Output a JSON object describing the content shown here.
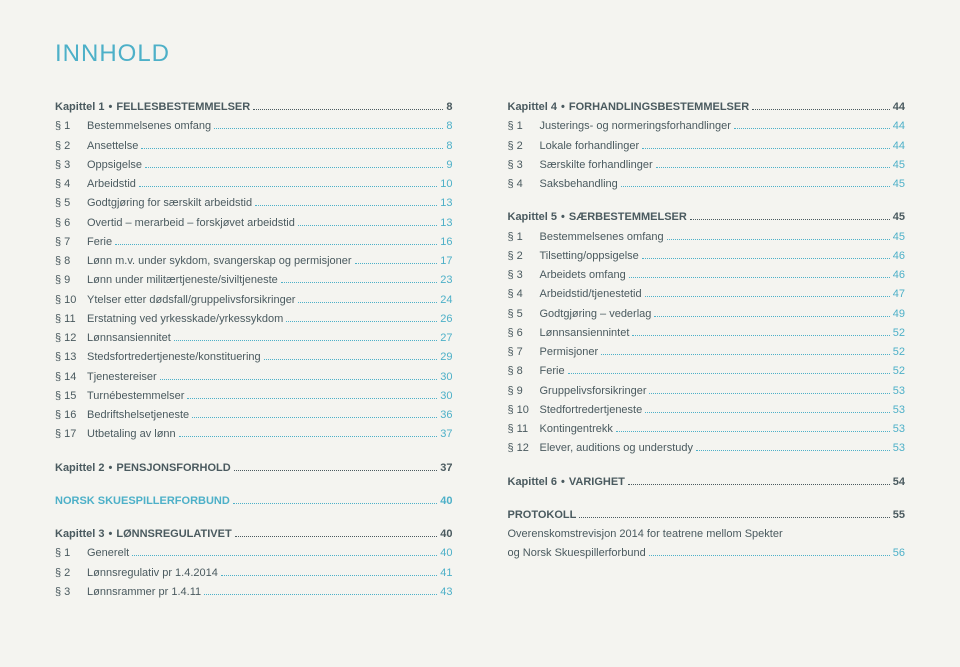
{
  "title": "INNHOLD",
  "left": {
    "ch1": {
      "label": "Kapittel 1",
      "name": "FELLESBESTEMMELSER",
      "page": "8"
    },
    "e1": {
      "s": "§ 1",
      "label": "Bestemmelsenes omfang",
      "page": "8"
    },
    "e2": {
      "s": "§ 2",
      "label": "Ansettelse",
      "page": "8"
    },
    "e3": {
      "s": "§ 3",
      "label": "Oppsigelse",
      "page": "9"
    },
    "e4": {
      "s": "§ 4",
      "label": "Arbeidstid",
      "page": "10"
    },
    "e5": {
      "s": "§ 5",
      "label": "Godtgjøring for særskilt arbeidstid",
      "page": "13"
    },
    "e6": {
      "s": "§ 6",
      "label": "Overtid – merarbeid – forskjøvet arbeidstid",
      "page": "13"
    },
    "e7": {
      "s": "§ 7",
      "label": "Ferie",
      "page": "16"
    },
    "e8": {
      "s": "§ 8",
      "label": "Lønn m.v. under sykdom, svangerskap og permisjoner",
      "page": "17"
    },
    "e9": {
      "s": "§ 9",
      "label": "Lønn under militærtjeneste/siviltjeneste",
      "page": "23"
    },
    "e10": {
      "s": "§ 10",
      "label": "Ytelser etter dødsfall/gruppelivsforsikringer",
      "page": "24"
    },
    "e11": {
      "s": "§ 11",
      "label": "Erstatning ved yrkesskade/yrkessykdom",
      "page": "26"
    },
    "e12": {
      "s": "§ 12",
      "label": "Lønnsansiennitet",
      "page": "27"
    },
    "e13": {
      "s": "§ 13",
      "label": "Stedsfortredertjeneste/konstituering",
      "page": "29"
    },
    "e14": {
      "s": "§ 14",
      "label": "Tjenestereiser",
      "page": "30"
    },
    "e15": {
      "s": "§ 15",
      "label": "Turnébestemmelser",
      "page": "30"
    },
    "e16": {
      "s": "§ 16",
      "label": "Bedriftshelsetjeneste",
      "page": "36"
    },
    "e17": {
      "s": "§ 17",
      "label": "Utbetaling av lønn",
      "page": "37"
    },
    "ch2": {
      "label": "Kapittel 2",
      "name": "PENSJONSFORHOLD",
      "page": "37"
    },
    "nsf": {
      "label": "NORSK SKUESPILLERFORBUND",
      "page": "40"
    },
    "ch3": {
      "label": "Kapittel 3",
      "name": "LØNNSREGULATIVET",
      "page": "40"
    },
    "e31": {
      "s": "§ 1",
      "label": "Generelt",
      "page": "40"
    },
    "e32": {
      "s": "§ 2",
      "label": "Lønnsregulativ pr 1.4.2014",
      "page": "41"
    },
    "e33": {
      "s": "§ 3",
      "label": "Lønnsrammer pr 1.4.11",
      "page": "43"
    }
  },
  "right": {
    "ch4": {
      "label": "Kapittel 4",
      "name": "FORHANDLINGSBESTEMMELSER",
      "page": "44"
    },
    "e41": {
      "s": "§ 1",
      "label": "Justerings- og normeringsforhandlinger",
      "page": "44"
    },
    "e42": {
      "s": "§ 2",
      "label": "Lokale forhandlinger",
      "page": "44"
    },
    "e43": {
      "s": "§ 3",
      "label": "Særskilte forhandlinger",
      "page": "45"
    },
    "e44": {
      "s": "§ 4",
      "label": "Saksbehandling",
      "page": "45"
    },
    "ch5": {
      "label": "Kapittel 5",
      "name": "SÆRBESTEMMELSER",
      "page": "45"
    },
    "e51": {
      "s": "§ 1",
      "label": "Bestemmelsenes omfang",
      "page": "45"
    },
    "e52": {
      "s": "§ 2",
      "label": "Tilsetting/oppsigelse",
      "page": "46"
    },
    "e53": {
      "s": "§ 3",
      "label": "Arbeidets omfang",
      "page": "46"
    },
    "e54": {
      "s": "§ 4",
      "label": "Arbeidstid/tjenestetid",
      "page": "47"
    },
    "e55": {
      "s": "§ 5",
      "label": "Godtgjøring – vederlag",
      "page": "49"
    },
    "e56": {
      "s": "§ 6",
      "label": "Lønnsansiennintet",
      "page": "52"
    },
    "e57": {
      "s": "§ 7",
      "label": "Permisjoner",
      "page": "52"
    },
    "e58": {
      "s": "§ 8",
      "label": "Ferie",
      "page": "52"
    },
    "e59": {
      "s": "§ 9",
      "label": "Gruppelivsforsikringer",
      "page": "53"
    },
    "e510": {
      "s": "§ 10",
      "label": "Stedfortredertjeneste",
      "page": "53"
    },
    "e511": {
      "s": "§ 11",
      "label": "Kontingentrekk",
      "page": "53"
    },
    "e512": {
      "s": "§ 12",
      "label": "Elever, auditions og understudy",
      "page": "53"
    },
    "ch6": {
      "label": "Kapittel 6",
      "name": "VARIGHET",
      "page": "54"
    },
    "proto": {
      "label": "PROTOKOLL",
      "page": "55"
    },
    "note1": "Overenskomstrevisjon 2014 for teatrene mellom Spekter",
    "noteRow": {
      "label": "og Norsk Skuespillerforbund",
      "page": "56"
    }
  },
  "colors": {
    "accent": "#4db0c8",
    "text": "#4a5a5f",
    "bg": "#f4f4f0"
  }
}
